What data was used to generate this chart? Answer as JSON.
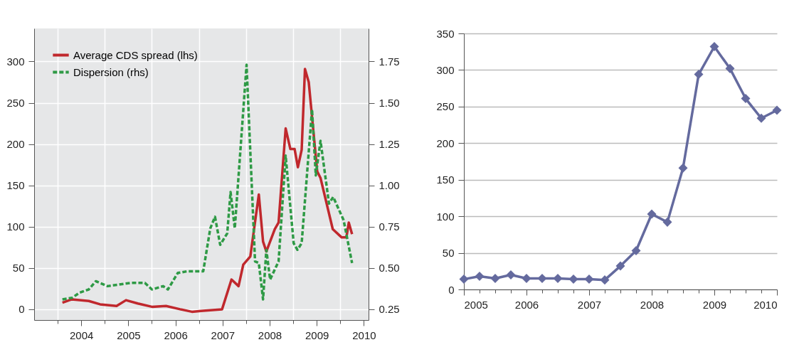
{
  "chart_data": [
    {
      "type": "line",
      "xlim": [
        2003.5,
        2010.6
      ],
      "ylim": [
        -13,
        340
      ],
      "y2lim": [
        0.185,
        1.95
      ],
      "xticks": [
        {
          "value": 2004,
          "label": null
        },
        {
          "value": 2004.5,
          "label": "2004"
        },
        {
          "value": 2005,
          "label": null
        },
        {
          "value": 2005.5,
          "label": "2005"
        },
        {
          "value": 2006,
          "label": null
        },
        {
          "value": 2006.5,
          "label": "2006"
        },
        {
          "value": 2007,
          "label": null
        },
        {
          "value": 2007.5,
          "label": "2007"
        },
        {
          "value": 2008,
          "label": null
        },
        {
          "value": 2008.5,
          "label": "2008"
        },
        {
          "value": 2009,
          "label": null
        },
        {
          "value": 2009.5,
          "label": "2009"
        },
        {
          "value": 2010,
          "label": null
        },
        {
          "value": 2010.5,
          "label": "2010"
        }
      ],
      "yticks": [
        0,
        50,
        100,
        150,
        200,
        250,
        300
      ],
      "y2ticks": [
        0.25,
        {
          "value": 0.5,
          "label": "0.50"
        },
        0.75,
        {
          "value": 1,
          "label": "1.00"
        },
        1.25,
        {
          "value": 1.5,
          "label": "1.50"
        },
        1.75
      ],
      "grid": true,
      "legend": "top left",
      "series": [
        {
          "name": "Average CDS spread (lhs)",
          "color": "#c0282d",
          "line_style": "solid",
          "x": [
            2004.1,
            2004.3,
            2004.66,
            2004.9,
            2005.25,
            2005.45,
            2005.7,
            2006.0,
            2006.3,
            2006.6,
            2006.85,
            2007.04,
            2007.49,
            2007.69,
            2007.84,
            2007.94,
            2008.09,
            2008.27,
            2008.36,
            2008.43,
            2008.61,
            2008.69,
            2008.84,
            2008.94,
            2009.03,
            2009.1,
            2009.18,
            2009.25,
            2009.33,
            2009.51,
            2009.58,
            2009.84,
            2010.03,
            2010.13,
            2010.18,
            2010.25
          ],
          "values": [
            8,
            12,
            10,
            6,
            4,
            11,
            7,
            3,
            4,
            0,
            -3,
            -2,
            0,
            36,
            28,
            54,
            64,
            139,
            82,
            70,
            97,
            105,
            219,
            194,
            194,
            172,
            193,
            291,
            275,
            167,
            159,
            97,
            87,
            87,
            105,
            91
          ]
        },
        {
          "name": "Dispersion (rhs)",
          "color": "#2e9a45",
          "line_style": "dashed",
          "axis": "y2",
          "x": [
            2004.1,
            2004.31,
            2004.46,
            2004.66,
            2004.81,
            2005.06,
            2005.3,
            2005.55,
            2005.85,
            2006.0,
            2006.24,
            2006.34,
            2006.55,
            2006.75,
            2006.93,
            2007.09,
            2007.24,
            2007.34,
            2007.45,
            2007.6,
            2007.67,
            2007.76,
            2008.01,
            2008.19,
            2008.27,
            2008.36,
            2008.43,
            2008.51,
            2008.69,
            2008.84,
            2009.01,
            2009.09,
            2009.18,
            2009.4,
            2009.48,
            2009.58,
            2009.76,
            2009.85,
            2010.07,
            2010.25
          ],
          "values": [
            0.31,
            0.32,
            0.35,
            0.37,
            0.42,
            0.39,
            0.4,
            0.41,
            0.41,
            0.37,
            0.39,
            0.37,
            0.47,
            0.48,
            0.48,
            0.48,
            0.74,
            0.81,
            0.64,
            0.71,
            0.96,
            0.74,
            1.73,
            0.54,
            0.53,
            0.31,
            0.61,
            0.43,
            0.54,
            1.18,
            0.65,
            0.61,
            0.65,
            1.46,
            1.06,
            1.27,
            0.89,
            0.93,
            0.79,
            0.53
          ]
        }
      ]
    },
    {
      "type": "line",
      "xlim": [
        2005,
        2010
      ],
      "ylim": [
        0,
        350
      ],
      "xticks": [
        2005,
        {
          "value": 2005.25,
          "label": null
        },
        {
          "value": 2005.5,
          "label": null
        },
        {
          "value": 2005.75,
          "label": null
        },
        2006,
        {
          "value": 2006.25,
          "label": null
        },
        {
          "value": 2006.5,
          "label": null
        },
        {
          "value": 2006.75,
          "label": null
        },
        2007,
        {
          "value": 2007.25,
          "label": null
        },
        {
          "value": 2007.5,
          "label": null
        },
        {
          "value": 2007.75,
          "label": null
        },
        2008,
        {
          "value": 2008.25,
          "label": null
        },
        {
          "value": 2008.5,
          "label": null
        },
        {
          "value": 2008.75,
          "label": null
        },
        2009,
        {
          "value": 2009.25,
          "label": null
        },
        {
          "value": 2009.5,
          "label": null
        },
        {
          "value": 2009.75,
          "label": null
        },
        2010
      ],
      "yticks": [
        0,
        50,
        100,
        150,
        200,
        250,
        300,
        350
      ],
      "grid": "y",
      "marker": "diamond",
      "series": [
        {
          "color": "#646a9e",
          "line_style": "solid",
          "x": [
            2005,
            2005.25,
            2005.5,
            2005.75,
            2006,
            2006.25,
            2006.5,
            2006.75,
            2007,
            2007.25,
            2007.5,
            2007.75,
            2008,
            2008.25,
            2008.5,
            2008.75,
            2009,
            2009.25,
            2009.5,
            2009.75,
            2010
          ],
          "values": [
            14,
            18,
            15,
            20,
            15,
            15,
            15,
            14,
            14,
            13,
            32,
            53,
            103,
            92,
            166,
            294,
            332,
            302,
            261,
            234,
            245
          ]
        }
      ]
    }
  ]
}
